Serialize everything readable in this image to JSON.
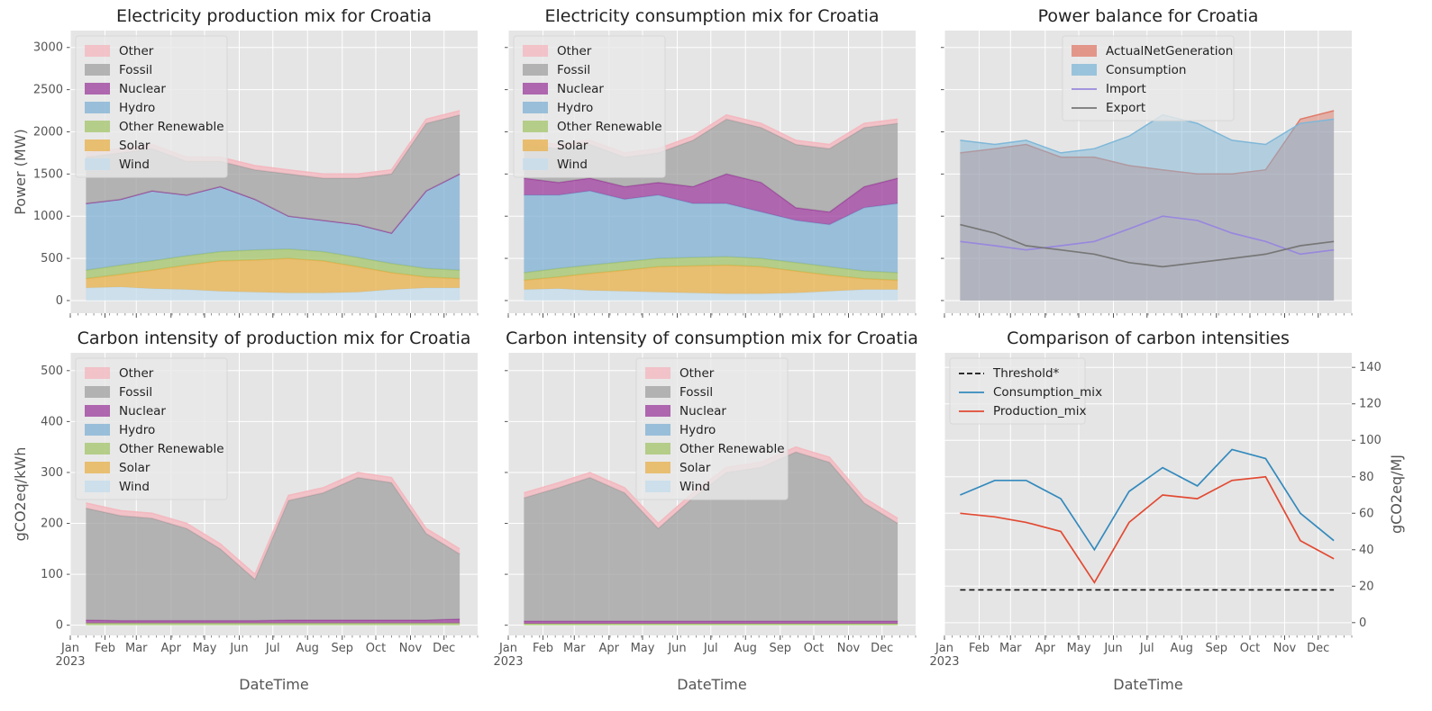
{
  "figure": {
    "months": [
      "Jan",
      "Feb",
      "Mar",
      "Apr",
      "May",
      "Jun",
      "Jul",
      "Aug",
      "Sep",
      "Oct",
      "Nov",
      "Dec"
    ],
    "year": "2023",
    "xlabel": "DateTime"
  },
  "legends": {
    "mix": [
      "Other",
      "Fossil",
      "Nuclear",
      "Hydro",
      "Other Renewable",
      "Solar",
      "Wind"
    ],
    "balance": [
      "ActualNetGeneration",
      "Consumption",
      "Import",
      "Export"
    ],
    "compare": [
      "Threshold*",
      "Consumption_mix",
      "Production_mix"
    ]
  },
  "colors": {
    "Other": "#f4b6bd",
    "Fossil": "#a0a0a0",
    "Nuclear": "#9b3b9b",
    "Hydro": "#7fb0d4",
    "Other Renewable": "#a3c46a",
    "Solar": "#e8b04a",
    "Wind": "#c3dcec",
    "ActualNetGeneration": "#e07b6a",
    "Consumption": "#7fb7d8",
    "Import": "#9988dd",
    "Export": "#777777",
    "Threshold*": "#111111",
    "Consumption_mix": "#348abd",
    "Production_mix": "#e24a33",
    "plot_bg": "#e5e5e5",
    "grid": "#ffffff"
  },
  "chart_data": [
    {
      "type": "area",
      "title": "Electricity production mix for Croatia",
      "ylabel": "Power (MW)",
      "xlabel": "DateTime",
      "ylim": [
        -150,
        3200
      ],
      "yticks": [
        0,
        500,
        1000,
        1500,
        2000,
        2500,
        3000
      ],
      "legend": "top-left",
      "grid": true,
      "x": [
        "2023-01-15",
        "2023-02-15",
        "2023-03-15",
        "2023-04-15",
        "2023-05-15",
        "2023-06-15",
        "2023-07-15",
        "2023-08-15",
        "2023-09-15",
        "2023-10-15",
        "2023-11-15",
        "2023-12-15"
      ],
      "series_cumulative": [
        {
          "name": "Wind",
          "values": [
            150,
            160,
            140,
            130,
            110,
            100,
            90,
            90,
            100,
            130,
            150,
            150
          ]
        },
        {
          "name": "Solar",
          "values": [
            260,
            310,
            360,
            420,
            470,
            480,
            500,
            470,
            400,
            330,
            280,
            260
          ]
        },
        {
          "name": "Other Renewable",
          "values": [
            360,
            420,
            470,
            530,
            580,
            600,
            610,
            580,
            510,
            440,
            380,
            360
          ]
        },
        {
          "name": "Hydro",
          "values": [
            1150,
            1200,
            1300,
            1250,
            1350,
            1200,
            1000,
            950,
            900,
            800,
            1300,
            1500
          ]
        },
        {
          "name": "Nuclear",
          "values": [
            1150,
            1200,
            1300,
            1250,
            1350,
            1200,
            1000,
            950,
            900,
            800,
            1300,
            1500
          ]
        },
        {
          "name": "Fossil",
          "values": [
            1700,
            1750,
            1800,
            1650,
            1650,
            1550,
            1500,
            1450,
            1450,
            1500,
            2100,
            2200
          ]
        },
        {
          "name": "Other",
          "values": [
            1750,
            1800,
            1850,
            1700,
            1700,
            1600,
            1550,
            1500,
            1500,
            1550,
            2150,
            2250
          ]
        }
      ]
    },
    {
      "type": "area",
      "title": "Electricity consumption mix for Croatia",
      "xlabel": "DateTime",
      "ylim": [
        -150,
        3200
      ],
      "legend": "top-left",
      "grid": true,
      "x": [
        "2023-01-15",
        "2023-02-15",
        "2023-03-15",
        "2023-04-15",
        "2023-05-15",
        "2023-06-15",
        "2023-07-15",
        "2023-08-15",
        "2023-09-15",
        "2023-10-15",
        "2023-11-15",
        "2023-12-15"
      ],
      "series_cumulative": [
        {
          "name": "Wind",
          "values": [
            130,
            140,
            120,
            110,
            100,
            90,
            80,
            80,
            90,
            110,
            130,
            130
          ]
        },
        {
          "name": "Solar",
          "values": [
            240,
            280,
            320,
            360,
            400,
            410,
            420,
            400,
            350,
            300,
            260,
            240
          ]
        },
        {
          "name": "Other Renewable",
          "values": [
            330,
            380,
            420,
            460,
            500,
            510,
            520,
            500,
            450,
            400,
            350,
            330
          ]
        },
        {
          "name": "Hydro",
          "values": [
            1250,
            1250,
            1300,
            1200,
            1250,
            1150,
            1150,
            1050,
            950,
            900,
            1100,
            1150
          ]
        },
        {
          "name": "Nuclear",
          "values": [
            1450,
            1400,
            1450,
            1350,
            1400,
            1350,
            1500,
            1400,
            1100,
            1050,
            1350,
            1450
          ]
        },
        {
          "name": "Fossil",
          "values": [
            1850,
            1800,
            1850,
            1700,
            1750,
            1900,
            2150,
            2050,
            1850,
            1800,
            2050,
            2100
          ]
        },
        {
          "name": "Other",
          "values": [
            1900,
            1850,
            1900,
            1750,
            1800,
            1950,
            2200,
            2100,
            1900,
            1850,
            2100,
            2150
          ]
        }
      ]
    },
    {
      "type": "area",
      "title": "Power balance for Croatia",
      "xlabel": "DateTime",
      "ylim": [
        -150,
        3200
      ],
      "legend": "top-center",
      "grid": true,
      "x": [
        "2023-01-15",
        "2023-02-15",
        "2023-03-15",
        "2023-04-15",
        "2023-05-15",
        "2023-06-15",
        "2023-07-15",
        "2023-08-15",
        "2023-09-15",
        "2023-10-15",
        "2023-11-15",
        "2023-12-15"
      ],
      "series": [
        {
          "name": "ActualNetGeneration",
          "values": [
            1750,
            1800,
            1850,
            1700,
            1700,
            1600,
            1550,
            1500,
            1500,
            1550,
            2150,
            2250
          ],
          "style": "area"
        },
        {
          "name": "Consumption",
          "values": [
            1900,
            1850,
            1900,
            1750,
            1800,
            1950,
            2200,
            2100,
            1900,
            1850,
            2100,
            2150
          ],
          "style": "area"
        },
        {
          "name": "Import",
          "values": [
            700,
            650,
            600,
            650,
            700,
            850,
            1000,
            950,
            800,
            700,
            550,
            600
          ],
          "style": "line"
        },
        {
          "name": "Export",
          "values": [
            900,
            800,
            650,
            600,
            550,
            450,
            400,
            450,
            500,
            550,
            650,
            700
          ],
          "style": "line"
        }
      ]
    },
    {
      "type": "area",
      "title": "Carbon intensity of production mix for Croatia",
      "ylabel": "gCO2eq/kWh",
      "xlabel": "DateTime",
      "ylim": [
        -20,
        535
      ],
      "yticks": [
        0,
        100,
        200,
        300,
        400,
        500
      ],
      "legend": "top-left",
      "grid": true,
      "x": [
        "2023-01-15",
        "2023-02-15",
        "2023-03-15",
        "2023-04-15",
        "2023-05-15",
        "2023-06-15",
        "2023-07-15",
        "2023-08-15",
        "2023-09-15",
        "2023-10-15",
        "2023-11-15",
        "2023-12-15"
      ],
      "series_cumulative": [
        {
          "name": "Other Renewable",
          "values": [
            4,
            4,
            4,
            4,
            4,
            4,
            4,
            4,
            4,
            4,
            4,
            4
          ]
        },
        {
          "name": "Nuclear",
          "values": [
            10,
            9,
            9,
            9,
            9,
            9,
            10,
            10,
            10,
            10,
            10,
            12
          ]
        },
        {
          "name": "Fossil",
          "values": [
            230,
            215,
            210,
            190,
            150,
            90,
            245,
            260,
            290,
            280,
            180,
            140
          ]
        },
        {
          "name": "Other",
          "values": [
            240,
            225,
            220,
            200,
            160,
            100,
            255,
            270,
            300,
            290,
            190,
            150
          ]
        }
      ]
    },
    {
      "type": "area",
      "title": "Carbon intensity of consumption mix for Croatia",
      "xlabel": "DateTime",
      "ylim": [
        -20,
        535
      ],
      "legend": "top-center",
      "grid": true,
      "x": [
        "2023-01-15",
        "2023-02-15",
        "2023-03-15",
        "2023-04-15",
        "2023-05-15",
        "2023-06-15",
        "2023-07-15",
        "2023-08-15",
        "2023-09-15",
        "2023-10-15",
        "2023-11-15",
        "2023-12-15"
      ],
      "series_cumulative": [
        {
          "name": "Other Renewable",
          "values": [
            3,
            3,
            3,
            3,
            3,
            3,
            3,
            3,
            3,
            3,
            3,
            3
          ]
        },
        {
          "name": "Nuclear",
          "values": [
            8,
            8,
            8,
            8,
            8,
            8,
            8,
            8,
            8,
            8,
            8,
            8
          ]
        },
        {
          "name": "Fossil",
          "values": [
            250,
            270,
            290,
            260,
            190,
            250,
            300,
            310,
            340,
            320,
            240,
            200
          ]
        },
        {
          "name": "Other",
          "values": [
            260,
            280,
            300,
            270,
            200,
            260,
            310,
            320,
            350,
            330,
            250,
            210
          ]
        }
      ]
    },
    {
      "type": "line",
      "title": "Comparison of carbon intensities",
      "ylabel": "gCO2eq/MJ",
      "xlabel": "DateTime",
      "ylim": [
        -7,
        148
      ],
      "yticks": [
        0,
        20,
        40,
        60,
        80,
        100,
        120,
        140
      ],
      "legend": "top-left",
      "grid": true,
      "x": [
        "2023-01-15",
        "2023-02-15",
        "2023-03-15",
        "2023-04-15",
        "2023-05-15",
        "2023-06-15",
        "2023-07-15",
        "2023-08-15",
        "2023-09-15",
        "2023-10-15",
        "2023-11-15",
        "2023-12-15"
      ],
      "series": [
        {
          "name": "Threshold*",
          "values": [
            18,
            18,
            18,
            18,
            18,
            18,
            18,
            18,
            18,
            18,
            18,
            18
          ],
          "style": "dashed"
        },
        {
          "name": "Consumption_mix",
          "values": [
            70,
            78,
            78,
            68,
            40,
            72,
            85,
            75,
            95,
            90,
            60,
            45
          ]
        },
        {
          "name": "Production_mix",
          "values": [
            60,
            58,
            55,
            50,
            22,
            55,
            70,
            68,
            78,
            80,
            45,
            35
          ]
        }
      ]
    }
  ]
}
